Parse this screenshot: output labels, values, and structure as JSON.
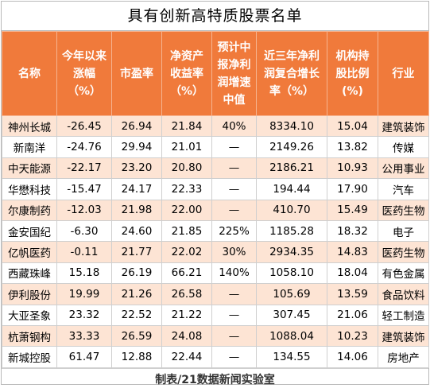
{
  "title": "具有创新高特质股票名单",
  "headers": [
    "名称",
    "今年以来涨幅（%）",
    "市盈率",
    "净资产收益率（%）",
    "预计中报净利润增速中值",
    "近三年净利润复合增长率（%）",
    "机构持股比例(%)",
    "行业"
  ],
  "rows": [
    {
      "name": "神州长城",
      "ytd": "-26.45",
      "pe": "26.94",
      "roe": "21.84",
      "forecast": "40%",
      "cagr": "8334.10",
      "inst": "15.04",
      "industry": "建筑装饰"
    },
    {
      "name": "新南洋",
      "ytd": "-24.76",
      "pe": "29.94",
      "roe": "21.01",
      "forecast": "—",
      "cagr": "2149.26",
      "inst": "13.82",
      "industry": "传媒"
    },
    {
      "name": "中天能源",
      "ytd": "-22.17",
      "pe": "23.20",
      "roe": "20.80",
      "forecast": "—",
      "cagr": "2186.21",
      "inst": "10.93",
      "industry": "公用事业"
    },
    {
      "name": "华懋科技",
      "ytd": "-15.47",
      "pe": "24.17",
      "roe": "22.33",
      "forecast": "—",
      "cagr": "194.44",
      "inst": "17.90",
      "industry": "汽车"
    },
    {
      "name": "尔康制药",
      "ytd": "-12.03",
      "pe": "21.98",
      "roe": "22.00",
      "forecast": "—",
      "cagr": "410.70",
      "inst": "15.49",
      "industry": "医药生物"
    },
    {
      "name": "金安国纪",
      "ytd": "-6.30",
      "pe": "24.60",
      "roe": "21.85",
      "forecast": "225%",
      "cagr": "1185.28",
      "inst": "18.32",
      "industry": "电子"
    },
    {
      "name": "亿帆医药",
      "ytd": "-0.11",
      "pe": "21.77",
      "roe": "22.02",
      "forecast": "30%",
      "cagr": "2934.35",
      "inst": "14.83",
      "industry": "医药生物"
    },
    {
      "name": "西藏珠峰",
      "ytd": "15.18",
      "pe": "26.19",
      "roe": "66.21",
      "forecast": "140%",
      "cagr": "1058.10",
      "inst": "18.04",
      "industry": "有色金属"
    },
    {
      "name": "伊利股份",
      "ytd": "19.99",
      "pe": "21.26",
      "roe": "26.58",
      "forecast": "—",
      "cagr": "105.69",
      "inst": "13.59",
      "industry": "食品饮料"
    },
    {
      "name": "大亚圣象",
      "ytd": "23.32",
      "pe": "22.52",
      "roe": "21.22",
      "forecast": "—",
      "cagr": "307.45",
      "inst": "21.06",
      "industry": "轻工制造"
    },
    {
      "name": "杭萧钢构",
      "ytd": "33.33",
      "pe": "26.59",
      "roe": "24.08",
      "forecast": "—",
      "cagr": "1088.04",
      "inst": "10.23",
      "industry": "建筑装饰"
    },
    {
      "name": "新城控股",
      "ytd": "61.47",
      "pe": "12.88",
      "roe": "22.44",
      "forecast": "—",
      "cagr": "134.55",
      "inst": "14.06",
      "industry": "房地产"
    }
  ],
  "footer": "制表/21数据新闻实验室",
  "colors": {
    "header_bg": "#f07a3b",
    "alt_row_bg": "#fde4d4"
  }
}
